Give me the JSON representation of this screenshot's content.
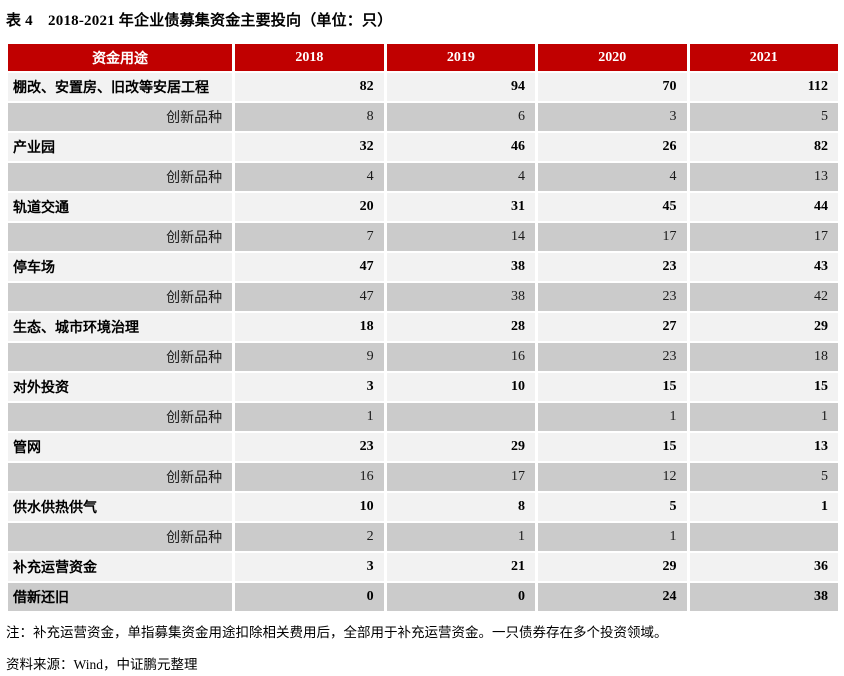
{
  "page": {
    "title": "表 4　2018-2021 年企业债募集资金主要投向（单位：只）",
    "note": "注：补充运营资金，单指募集资金用途扣除相关费用后，全部用于补充运营资金。一只债券存在多个投资领域。",
    "source": "资料来源：Wind，中证鹏元整理"
  },
  "colors": {
    "header_bg": "#C00000",
    "header_text": "#FFFFFF",
    "row_light": "#F2F2F2",
    "row_dark": "#CBCBCB",
    "body_text": "#000000"
  },
  "table": {
    "columns": [
      "资金用途",
      "2018",
      "2019",
      "2020",
      "2021"
    ],
    "rows": [
      {
        "label": "棚改、安置房、旧改等安居工程",
        "style": "main",
        "shade": "light",
        "values": [
          "82",
          "94",
          "70",
          "112"
        ]
      },
      {
        "label": "创新品种",
        "style": "sub",
        "shade": "dark",
        "values": [
          "8",
          "6",
          "3",
          "5"
        ]
      },
      {
        "label": "产业园",
        "style": "main",
        "shade": "light",
        "values": [
          "32",
          "46",
          "26",
          "82"
        ]
      },
      {
        "label": "创新品种",
        "style": "sub",
        "shade": "dark",
        "values": [
          "4",
          "4",
          "4",
          "13"
        ]
      },
      {
        "label": "轨道交通",
        "style": "main",
        "shade": "light",
        "values": [
          "20",
          "31",
          "45",
          "44"
        ]
      },
      {
        "label": "创新品种",
        "style": "sub",
        "shade": "dark",
        "values": [
          "7",
          "14",
          "17",
          "17"
        ]
      },
      {
        "label": "停车场",
        "style": "main",
        "shade": "light",
        "values": [
          "47",
          "38",
          "23",
          "43"
        ]
      },
      {
        "label": "创新品种",
        "style": "sub",
        "shade": "dark",
        "values": [
          "47",
          "38",
          "23",
          "42"
        ]
      },
      {
        "label": "生态、城市环境治理",
        "style": "main",
        "shade": "light",
        "values": [
          "18",
          "28",
          "27",
          "29"
        ]
      },
      {
        "label": "创新品种",
        "style": "sub",
        "shade": "dark",
        "values": [
          "9",
          "16",
          "23",
          "18"
        ]
      },
      {
        "label": "对外投资",
        "style": "main",
        "shade": "light",
        "values": [
          "3",
          "10",
          "15",
          "15"
        ]
      },
      {
        "label": "创新品种",
        "style": "sub",
        "shade": "dark",
        "values": [
          "1",
          "",
          "1",
          "1"
        ]
      },
      {
        "label": "管网",
        "style": "main",
        "shade": "light",
        "values": [
          "23",
          "29",
          "15",
          "13"
        ]
      },
      {
        "label": "创新品种",
        "style": "sub",
        "shade": "dark",
        "values": [
          "16",
          "17",
          "12",
          "5"
        ]
      },
      {
        "label": "供水供热供气",
        "style": "main",
        "shade": "light",
        "values": [
          "10",
          "8",
          "5",
          "1"
        ]
      },
      {
        "label": "创新品种",
        "style": "sub",
        "shade": "dark",
        "values": [
          "2",
          "1",
          "1",
          ""
        ]
      },
      {
        "label": "补充运营资金",
        "style": "main",
        "shade": "light",
        "values": [
          "3",
          "21",
          "29",
          "36"
        ]
      },
      {
        "label": "借新还旧",
        "style": "main",
        "shade": "dark",
        "values": [
          "0",
          "0",
          "24",
          "38"
        ]
      }
    ]
  }
}
